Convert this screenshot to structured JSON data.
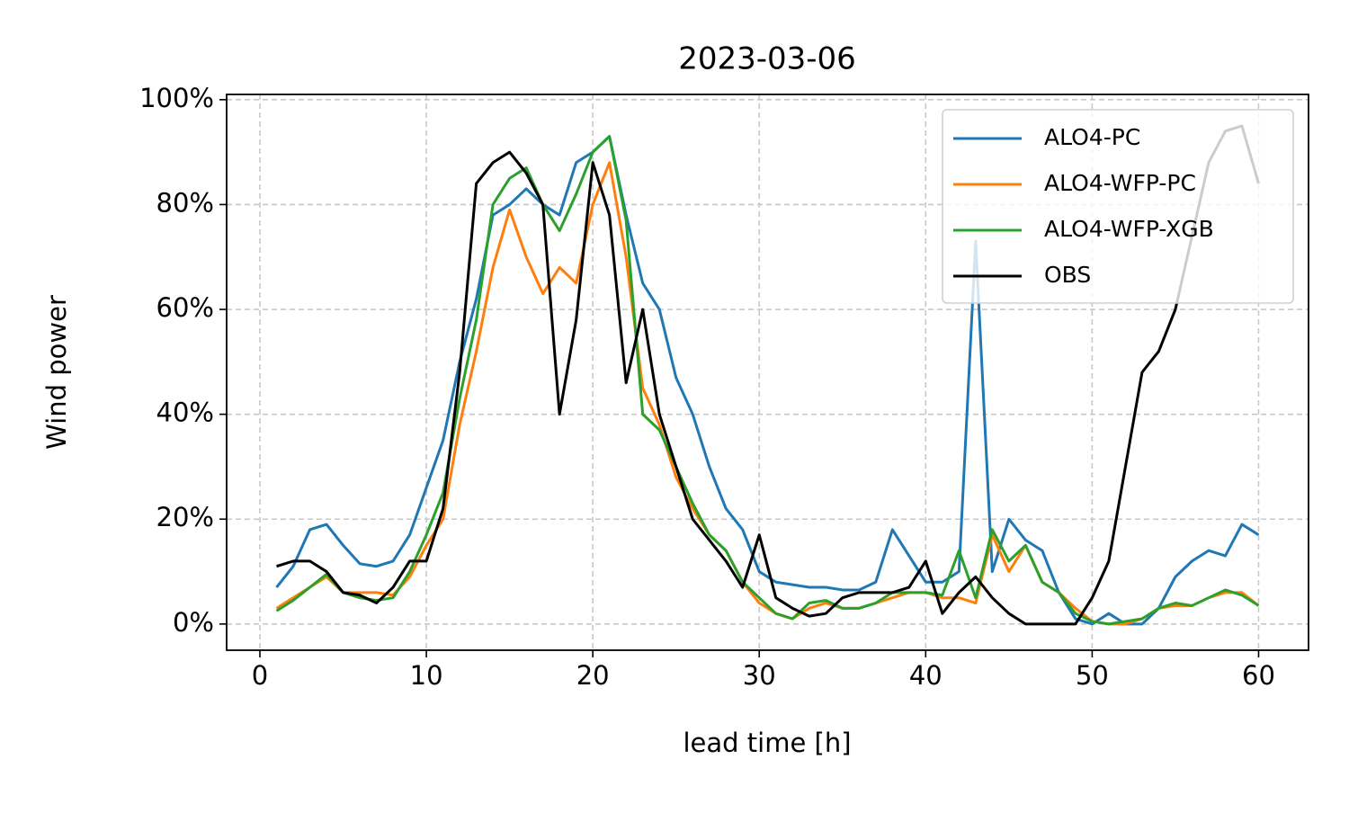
{
  "chart_data": {
    "type": "line",
    "title": "2023-03-06",
    "xlabel": "lead time [h]",
    "ylabel": "Wind power",
    "x": [
      1,
      2,
      3,
      4,
      5,
      6,
      7,
      8,
      9,
      10,
      11,
      12,
      13,
      14,
      15,
      16,
      17,
      18,
      19,
      20,
      21,
      22,
      23,
      24,
      25,
      26,
      27,
      28,
      29,
      30,
      31,
      32,
      33,
      34,
      35,
      36,
      37,
      38,
      39,
      40,
      41,
      42,
      43,
      44,
      45,
      46,
      47,
      48,
      49,
      50,
      51,
      52,
      53,
      54,
      55,
      56,
      57,
      58,
      59,
      60
    ],
    "series": [
      {
        "name": "ALO4-PC",
        "color": "#1f77b4",
        "values": [
          7,
          11,
          18,
          19,
          15,
          11.5,
          11,
          12,
          17,
          26,
          35,
          50,
          62,
          78,
          80,
          83,
          80,
          78,
          88,
          90,
          93,
          78,
          65,
          60,
          47,
          40,
          30,
          22,
          18,
          10,
          8,
          7.5,
          7,
          7,
          6.5,
          6.5,
          8,
          18,
          13,
          8,
          8,
          10,
          73,
          10,
          20,
          16,
          14,
          6,
          1,
          0,
          2,
          0,
          0,
          3,
          9,
          12,
          14,
          13,
          19,
          17
        ]
      },
      {
        "name": "ALO4-WFP-PC",
        "color": "#ff7f0e",
        "values": [
          3,
          5,
          7,
          9,
          6,
          6,
          6,
          5.5,
          9,
          15,
          20,
          38,
          52,
          68,
          79,
          70,
          63,
          68,
          65,
          80,
          88,
          70,
          45,
          38,
          28,
          22,
          17,
          14,
          8,
          4,
          2,
          1,
          3,
          4,
          3,
          3,
          4,
          5,
          6,
          6,
          5,
          5,
          4,
          17,
          10,
          15,
          8,
          6,
          3,
          0.5,
          0,
          0,
          1,
          3,
          3.5,
          3.5,
          5,
          6,
          6,
          3.5
        ]
      },
      {
        "name": "ALO4-WFP-XGB",
        "color": "#2ca02c",
        "values": [
          2.5,
          4.5,
          7,
          9.5,
          6,
          5,
          4.5,
          5,
          10,
          17,
          25,
          43,
          58,
          80,
          85,
          87,
          80,
          75,
          82,
          90,
          93,
          77,
          40,
          37,
          30,
          23,
          17,
          14,
          8,
          5,
          2,
          1,
          4,
          4.5,
          3,
          3,
          4,
          6,
          6,
          6,
          5.5,
          14,
          5,
          18,
          12,
          15,
          8,
          6,
          2,
          0.5,
          0,
          0.5,
          1,
          3,
          4,
          3.5,
          5,
          6.5,
          5.5,
          3.5
        ]
      },
      {
        "name": "OBS",
        "color": "#000000",
        "values": [
          11,
          12,
          12,
          10,
          6,
          5.5,
          4,
          7,
          12,
          12,
          22,
          48,
          84,
          88,
          90,
          86,
          80,
          40,
          58,
          88,
          78,
          46,
          60,
          40,
          30,
          20,
          16,
          12,
          7,
          17,
          5,
          3,
          1.5,
          2,
          5,
          6,
          6,
          6,
          7,
          12,
          2,
          6,
          9,
          5,
          2,
          0,
          0,
          0,
          0,
          5,
          12,
          30,
          48,
          52,
          60,
          74,
          88,
          94,
          95,
          84
        ]
      }
    ],
    "xlim": [
      -2,
      63
    ],
    "xticks": [
      0,
      10,
      20,
      30,
      40,
      50,
      60
    ],
    "ylim": [
      -5,
      101
    ],
    "yticks": [
      {
        "value": 0,
        "label": "0%"
      },
      {
        "value": 20,
        "label": "20%"
      },
      {
        "value": 40,
        "label": "40%"
      },
      {
        "value": 60,
        "label": "60%"
      },
      {
        "value": 80,
        "label": "80%"
      },
      {
        "value": 100,
        "label": "100%"
      }
    ],
    "grid": true,
    "legend": "upper right"
  }
}
